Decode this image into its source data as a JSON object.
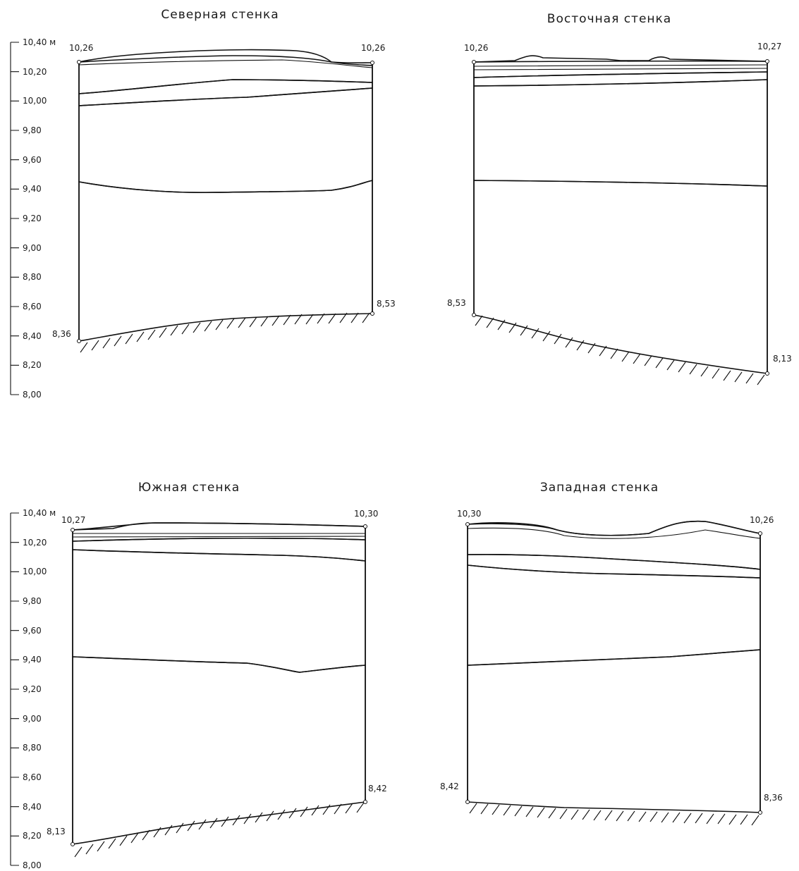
{
  "panels": [
    {
      "title": "Северная стенка",
      "top_left": "10,26",
      "top_right": "10,26",
      "bottom_left": "8,36",
      "bottom_right": "8,53",
      "axis_ticks": [
        "10,40 м",
        "10,20",
        "10,00",
        "9,80",
        "9,60",
        "9,40",
        "9,20",
        "9,00",
        "8,80",
        "8,60",
        "8,40",
        "8,20",
        "8,00"
      ]
    },
    {
      "title": "Восточная стенка",
      "top_left": "10,26",
      "top_right": "10,27",
      "bottom_left": "8,53",
      "bottom_right": "8,13"
    },
    {
      "title": "Южная стенка",
      "top_left": "10,27",
      "top_right": "10,30",
      "bottom_left": "8,13",
      "bottom_right": "8,42",
      "axis_ticks": [
        "10,40 м",
        "10,20",
        "10,00",
        "9,80",
        "9,60",
        "9,40",
        "9,20",
        "9,00",
        "8,80",
        "8,60",
        "8,40",
        "8,20",
        "8,00"
      ]
    },
    {
      "title": "Западная стенка",
      "top_left": "10,30",
      "top_right": "10,26",
      "bottom_left": "8,42",
      "bottom_right": "8,36"
    }
  ]
}
